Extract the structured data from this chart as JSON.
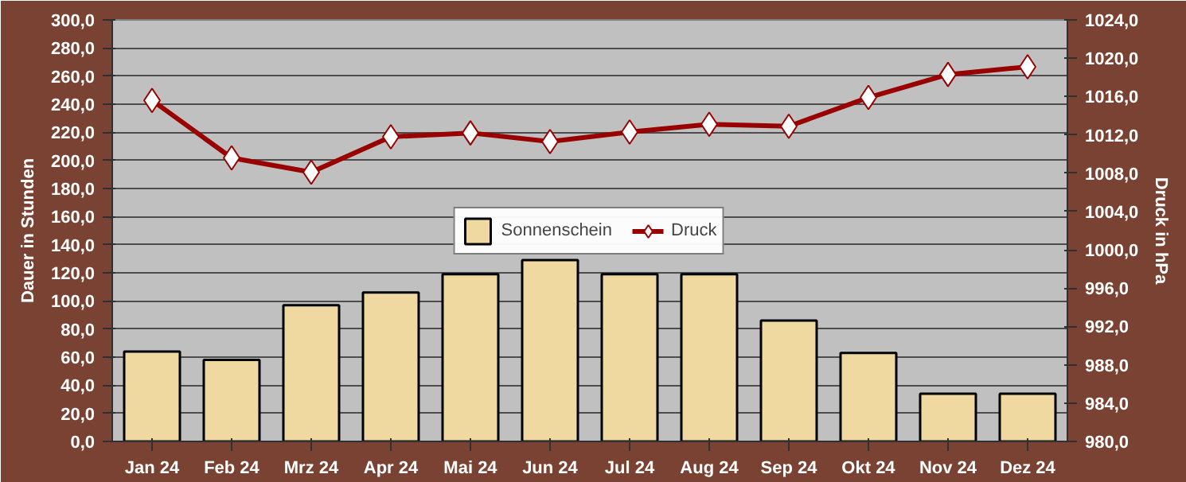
{
  "chart_data": {
    "type": "bar",
    "ylabel": "Dauer in Stunden",
    "y2label": "Druck in hPa",
    "categories": [
      "Jan 24",
      "Feb 24",
      "Mrz 24",
      "Apr 24",
      "Mai 24",
      "Jun 24",
      "Jul 24",
      "Aug 24",
      "Sep 24",
      "Okt 24",
      "Nov 24",
      "Dez 24"
    ],
    "series": [
      {
        "name": "Sonnenschein",
        "color": "#f0d9a0",
        "values": [
          64,
          58,
          97,
          106,
          119,
          129,
          119,
          119,
          86,
          63,
          34,
          34
        ]
      },
      {
        "name": "Druck",
        "type": "line",
        "axis": "y2",
        "color": "#990000",
        "marker": "diamond",
        "values": [
          1015.6,
          1009.6,
          1008.1,
          1011.8,
          1012.2,
          1011.3,
          1012.3,
          1013.1,
          1012.9,
          1015.9,
          1018.3,
          1019.1
        ]
      }
    ],
    "ylim": [
      0,
      300
    ],
    "yticks": [
      {
        "value": 0,
        "label": "0,0"
      },
      {
        "value": 20,
        "label": "20,0"
      },
      {
        "value": 40,
        "label": "40,0"
      },
      {
        "value": 60,
        "label": "60,0"
      },
      {
        "value": 80,
        "label": "80,0"
      },
      {
        "value": 100,
        "label": "100,0"
      },
      {
        "value": 120,
        "label": "120,0"
      },
      {
        "value": 140,
        "label": "140,0"
      },
      {
        "value": 160,
        "label": "160,0"
      },
      {
        "value": 180,
        "label": "180,0"
      },
      {
        "value": 200,
        "label": "200,0"
      },
      {
        "value": 220,
        "label": "220,0"
      },
      {
        "value": 240,
        "label": "240,0"
      },
      {
        "value": 260,
        "label": "260,0"
      },
      {
        "value": 280,
        "label": "280,0"
      },
      {
        "value": 300,
        "label": "300,0"
      }
    ],
    "y2lim": [
      980,
      1024
    ],
    "y2ticks": [
      {
        "value": 980,
        "label": "980,0"
      },
      {
        "value": 984,
        "label": "984,0"
      },
      {
        "value": 988,
        "label": "988,0"
      },
      {
        "value": 992,
        "label": "992,0"
      },
      {
        "value": 996,
        "label": "996,0"
      },
      {
        "value": 1000,
        "label": "1000,0"
      },
      {
        "value": 1004,
        "label": "1004,0"
      },
      {
        "value": 1008,
        "label": "1008,0"
      },
      {
        "value": 1012,
        "label": "1012,0"
      },
      {
        "value": 1016,
        "label": "1016,0"
      },
      {
        "value": 1020,
        "label": "1020,0"
      },
      {
        "value": 1024,
        "label": "1024,0"
      }
    ],
    "grid": "y",
    "legend": "center",
    "line_style": "solid"
  }
}
